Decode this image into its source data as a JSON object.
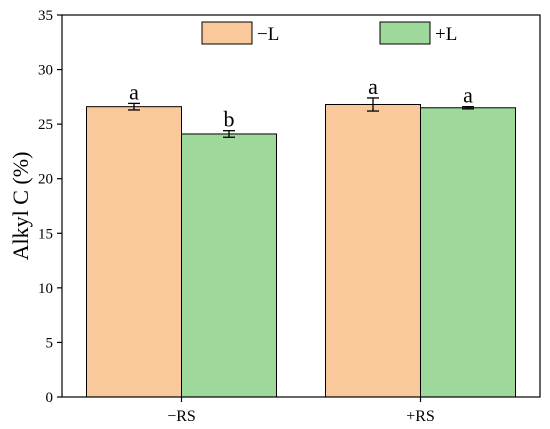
{
  "chart_data": {
    "type": "bar",
    "categories": [
      "−RS",
      "+RS"
    ],
    "series": [
      {
        "name": "−L",
        "color": "#f9c89b",
        "values": [
          26.6,
          26.8
        ],
        "errors": [
          0.3,
          0.6
        ],
        "letters": [
          "a",
          "a"
        ]
      },
      {
        "name": "+L",
        "color": "#9fd89b",
        "values": [
          24.1,
          26.5
        ],
        "errors": [
          0.3,
          0.1
        ],
        "letters": [
          "b",
          "a"
        ]
      }
    ],
    "ylabel": "Alkyl C (%)",
    "xlabel": "",
    "ylim": [
      0,
      35
    ],
    "yticks": [
      0,
      5,
      10,
      15,
      20,
      25,
      30,
      35
    ],
    "legend": "top-center",
    "grid": false
  }
}
